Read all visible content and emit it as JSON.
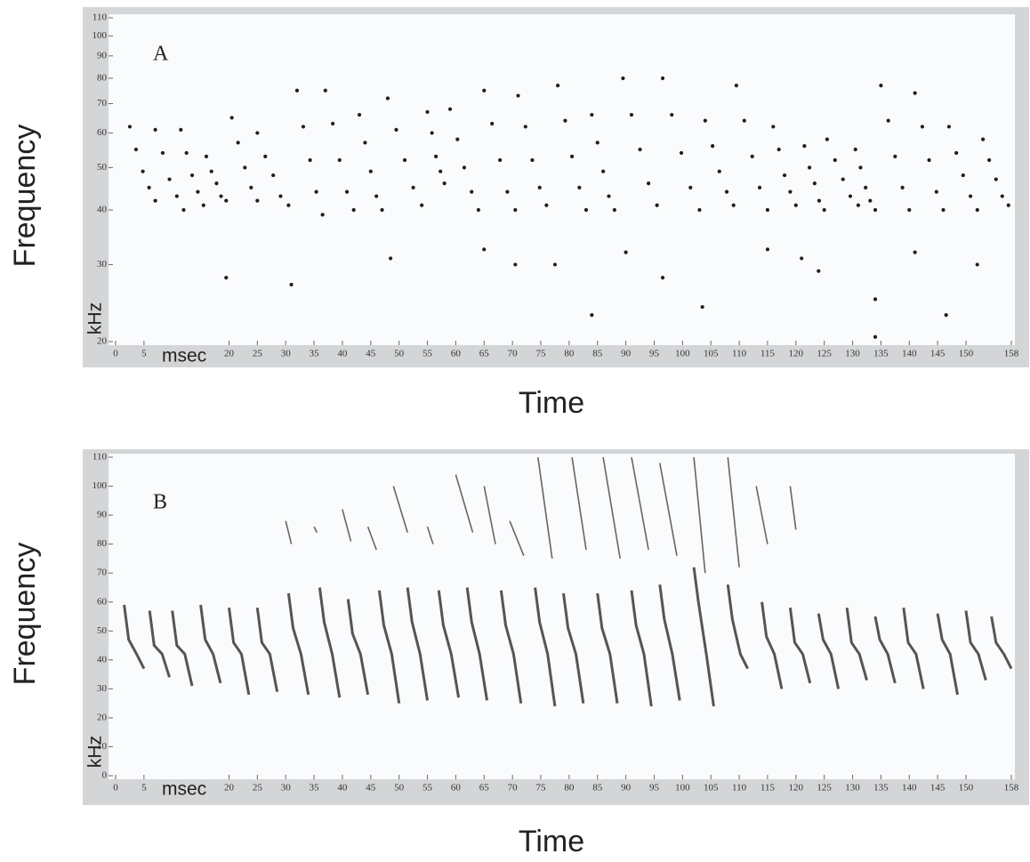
{
  "chart_data": [
    {
      "type": "scatter",
      "title": "A",
      "xlabel": "Time",
      "ylabel": "Frequency",
      "x_unit": "msec",
      "y_unit": "kHz",
      "xlim": [
        0,
        158
      ],
      "ylim": [
        20,
        110
      ],
      "yscale": "log",
      "xticks": [
        0,
        5,
        20,
        25,
        30,
        35,
        40,
        45,
        50,
        55,
        60,
        65,
        70,
        75,
        80,
        85,
        90,
        95,
        100,
        105,
        110,
        115,
        120,
        125,
        130,
        135,
        140,
        145,
        150,
        158
      ],
      "yticks": [
        20,
        30,
        40,
        50,
        60,
        70,
        80,
        90,
        100,
        110
      ],
      "series": [
        {
          "color": "#1e1e1e",
          "x": [
            2.5,
            3.6,
            4.8,
            5.9,
            7,
            7,
            8.3,
            9.5,
            10.8,
            12,
            11.5,
            12.5,
            13.5,
            14.5,
            15.5,
            16,
            16.9,
            17.8,
            18.6,
            19.5,
            20.5,
            21.6,
            22.8,
            23.9,
            25,
            25,
            26.4,
            27.8,
            29.1,
            30.5,
            32,
            33.1,
            34.3,
            35.4,
            36.5,
            37,
            38.3,
            39.5,
            40.8,
            42,
            43,
            44,
            45,
            46,
            47,
            48,
            49.5,
            51,
            52.5,
            54,
            55,
            55.8,
            56.5,
            57.3,
            58,
            59,
            60.3,
            61.5,
            62.8,
            64,
            65,
            66.4,
            67.8,
            69.1,
            70.5,
            71,
            72.3,
            73.5,
            74.8,
            76,
            78,
            79.3,
            80.5,
            81.8,
            83,
            84,
            85,
            86,
            87,
            88,
            89.5,
            91,
            92.5,
            94,
            95.5,
            96.5,
            98.1,
            99.8,
            101.4,
            103,
            104,
            105.3,
            106.5,
            107.8,
            109,
            109.5,
            110.9,
            112.3,
            113.6,
            115,
            116,
            117,
            118,
            119,
            120,
            121.5,
            122.4,
            123.3,
            124.1,
            125,
            125.5,
            126.9,
            128.3,
            129.6,
            131,
            130.5,
            131.4,
            132.3,
            133.1,
            134,
            135,
            136.3,
            137.5,
            138.8,
            140,
            141,
            142.3,
            143.5,
            144.8,
            146,
            147,
            148.3,
            149.5,
            150.8,
            152,
            153,
            154.1,
            155.3,
            156.4,
            157.5,
            19.5,
            31,
            48.5,
            65,
            70.5,
            77.5,
            84,
            90,
            96.5,
            103.5,
            115,
            121,
            124,
            134,
            134,
            141,
            146.5,
            152
          ],
          "values": [
            62,
            55,
            49,
            45,
            42,
            61,
            54,
            47,
            43,
            40,
            61,
            54,
            48,
            44,
            41,
            53,
            49,
            46,
            43,
            42,
            65,
            57,
            50,
            45,
            42,
            60,
            53,
            48,
            43,
            41,
            75,
            62,
            52,
            44,
            39,
            75,
            63,
            52,
            44,
            40,
            66,
            57,
            49,
            43,
            40,
            72,
            61,
            52,
            45,
            41,
            67,
            60,
            53,
            49,
            46,
            68,
            58,
            50,
            44,
            40,
            75,
            63,
            52,
            44,
            40,
            73,
            62,
            52,
            45,
            41,
            77,
            64,
            53,
            45,
            40,
            66,
            57,
            49,
            43,
            40,
            80,
            66,
            55,
            46,
            41,
            80,
            66,
            54,
            45,
            40,
            64,
            56,
            49,
            44,
            41,
            77,
            64,
            53,
            45,
            40,
            62,
            55,
            48,
            44,
            41,
            56,
            50,
            46,
            42,
            40,
            58,
            52,
            47,
            43,
            41,
            55,
            50,
            45,
            42,
            40,
            77,
            64,
            53,
            45,
            40,
            74,
            62,
            52,
            44,
            40,
            62,
            54,
            48,
            43,
            40,
            58,
            52,
            47,
            43,
            41,
            28,
            27,
            31,
            32.5,
            30,
            30,
            23,
            32,
            28,
            24,
            32.5,
            31,
            29,
            20.5,
            25,
            32,
            23,
            30
          ]
        }
      ]
    },
    {
      "type": "line",
      "title": "B",
      "xlabel": "Time",
      "ylabel": "Frequency",
      "x_unit": "msec",
      "y_unit": "kHz",
      "xlim": [
        0,
        158
      ],
      "ylim": [
        0,
        110
      ],
      "xticks": [
        0,
        5,
        20,
        25,
        30,
        35,
        40,
        45,
        50,
        55,
        60,
        65,
        70,
        75,
        80,
        85,
        90,
        95,
        100,
        105,
        110,
        115,
        120,
        125,
        130,
        135,
        140,
        145,
        150,
        158
      ],
      "yticks": [
        0,
        10,
        20,
        30,
        40,
        50,
        60,
        70,
        80,
        90,
        100,
        110
      ],
      "series": [
        {
          "color": "#555555",
          "x": [
            1.5,
            2.3,
            3.7,
            5,
            null,
            6,
            6.8,
            8.2,
            9.5,
            null,
            10,
            10.8,
            12.2,
            13.5,
            null,
            15,
            15.8,
            17.2,
            18.5,
            null,
            20,
            20.8,
            22.2,
            23.5,
            null,
            25,
            25.8,
            27.2,
            28.5,
            null,
            30.5,
            31.3,
            32.7,
            34,
            null,
            36,
            36.8,
            38.2,
            39.5,
            null,
            41,
            41.8,
            43.2,
            44.5,
            null,
            46.5,
            47.3,
            48.7,
            50,
            null,
            51.5,
            52.3,
            53.7,
            55,
            null,
            57,
            57.8,
            59.2,
            60.5,
            null,
            62,
            62.8,
            64.2,
            65.5,
            null,
            68,
            68.8,
            70.2,
            71.5,
            null,
            74,
            74.8,
            76.2,
            77.5,
            null,
            79,
            79.8,
            81.2,
            82.5,
            null,
            85,
            85.8,
            87.2,
            88.5,
            null,
            91,
            91.8,
            93.2,
            94.5,
            null,
            96,
            96.8,
            98.2,
            99.5,
            null,
            102,
            102.8,
            104.2,
            105.5,
            null,
            108,
            108.8,
            110.2,
            111.5,
            null,
            114,
            114.8,
            116.2,
            117.5,
            null,
            119,
            119.8,
            121.2,
            122.5,
            null,
            124,
            124.8,
            126.2,
            127.5,
            null,
            129,
            129.8,
            131.2,
            132.5,
            null,
            134,
            134.8,
            136.2,
            137.5,
            null,
            139,
            139.8,
            141.2,
            142.5,
            null,
            145,
            145.8,
            147.2,
            148.5,
            null,
            150,
            150.8,
            152.2,
            153.5,
            null,
            154.5,
            155.3,
            156.7,
            158
          ],
          "values": [
            59,
            47,
            42,
            37,
            null,
            57,
            45,
            42,
            34,
            null,
            57,
            45,
            42,
            31,
            null,
            59,
            47,
            42,
            32,
            null,
            58,
            46,
            42,
            28,
            null,
            58,
            46,
            42,
            29,
            null,
            63,
            51,
            42,
            28,
            null,
            65,
            53,
            42,
            27,
            null,
            61,
            49,
            42,
            28,
            null,
            64,
            52,
            42,
            25,
            null,
            65,
            53,
            42,
            26,
            null,
            64,
            52,
            42,
            27,
            null,
            65,
            53,
            42,
            26,
            null,
            64,
            52,
            42,
            25,
            null,
            65,
            53,
            42,
            24,
            null,
            63,
            51,
            42,
            25,
            null,
            63,
            51,
            42,
            25,
            null,
            64,
            52,
            42,
            24,
            null,
            66,
            54,
            42,
            26,
            null,
            72,
            60,
            42,
            24,
            null,
            66,
            54,
            42,
            37,
            null,
            60,
            48,
            42,
            30,
            null,
            58,
            46,
            42,
            32,
            null,
            56,
            47,
            42,
            30,
            null,
            58,
            46,
            42,
            33,
            null,
            55,
            47,
            42,
            32,
            null,
            58,
            46,
            42,
            30,
            null,
            56,
            47,
            42,
            28,
            null,
            57,
            46,
            42,
            33,
            null,
            55,
            46,
            42,
            37
          ]
        },
        {
          "color": "#666666",
          "x": [
            30,
            31,
            null,
            35,
            35.5,
            null,
            40,
            41.5,
            null,
            44.5,
            46,
            null,
            49,
            51.5,
            null,
            55,
            56,
            null,
            60,
            63,
            null,
            65,
            67,
            null,
            69.5,
            72,
            null,
            74.5,
            77,
            null,
            80.5,
            83,
            null,
            86,
            89,
            null,
            91,
            94,
            null,
            96,
            99,
            null,
            102,
            104,
            null,
            108,
            110,
            null,
            113,
            115,
            null,
            119,
            120
          ],
          "values": [
            88,
            80,
            null,
            86,
            84,
            null,
            92,
            81,
            null,
            86,
            78,
            null,
            100,
            84,
            null,
            86,
            80,
            null,
            104,
            84,
            null,
            100,
            80,
            null,
            88,
            76,
            null,
            110,
            75,
            null,
            110,
            78,
            null,
            110,
            75,
            null,
            110,
            78,
            null,
            108,
            76,
            null,
            110,
            70,
            null,
            110,
            72,
            null,
            100,
            80,
            null,
            100,
            85
          ]
        }
      ]
    }
  ]
}
